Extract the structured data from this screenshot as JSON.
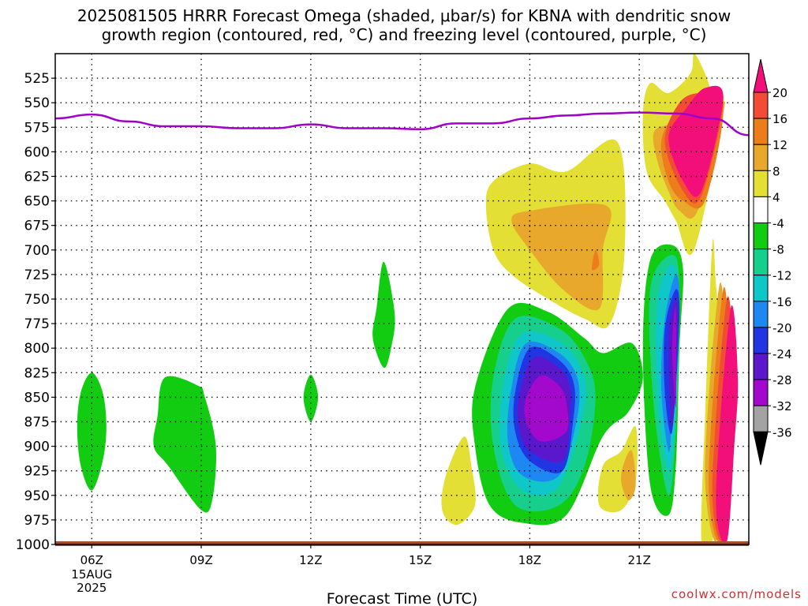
{
  "title_line1": "2025081505 HRRR Forecast Omega (shaded, μbar/s) for KBNA with dendritic snow",
  "title_line2": "growth region (contoured, red, °C) and freezing level (contoured, purple, °C)",
  "credit": "coolwx.com/models",
  "chart_data": {
    "type": "contour",
    "xlabel": "Forecast Time (UTC)",
    "ylabel": "",
    "x_range_hours": [
      5,
      24
    ],
    "x_ticks": [
      {
        "hour": 6,
        "label": "06Z",
        "sublabels": [
          "15AUG",
          "2025"
        ]
      },
      {
        "hour": 9,
        "label": "09Z"
      },
      {
        "hour": 12,
        "label": "12Z"
      },
      {
        "hour": 15,
        "label": "15Z"
      },
      {
        "hour": 18,
        "label": "18Z"
      },
      {
        "hour": 21,
        "label": "21Z"
      }
    ],
    "y_axis_pressure_mb": [
      525,
      550,
      575,
      600,
      625,
      650,
      675,
      700,
      725,
      750,
      775,
      800,
      825,
      850,
      875,
      900,
      925,
      950,
      975,
      1000
    ],
    "y_range_mb": [
      500,
      1000
    ],
    "grid": true,
    "colorbar": {
      "levels": [
        "20",
        "16",
        "12",
        "8",
        "4",
        "-4",
        "-8",
        "-12",
        "-16",
        "-20",
        "-24",
        "-28",
        "-32",
        "-36"
      ],
      "colors": [
        "#f20f7a",
        "#f24c36",
        "#ec7d1a",
        "#e7a82c",
        "#e3df35",
        "#ffffff",
        "#11cc11",
        "#17cf8c",
        "#0fc7c9",
        "#1e88f2",
        "#2235e2",
        "#5a17cc",
        "#a309cc",
        "#a3a3a3",
        "#000000"
      ]
    },
    "freezing_level_mb": {
      "color": "#a000c8",
      "x": [
        5,
        6,
        7,
        8,
        9,
        10,
        11,
        12,
        13,
        14,
        15,
        16,
        17,
        18,
        19,
        20,
        21,
        22,
        23,
        24
      ],
      "y": [
        566,
        562,
        569,
        574,
        574,
        576,
        576,
        572,
        576,
        576,
        577,
        571,
        571,
        566,
        563,
        561,
        560,
        561,
        566,
        583
      ]
    },
    "omega_regions": [
      {
        "level": -4,
        "hours": [
          6.0,
          6.3,
          6.4,
          6.3,
          6.0,
          5.7,
          5.6,
          5.7
        ],
        "mb": [
          825,
          845,
          880,
          915,
          945,
          920,
          880,
          845
        ]
      },
      {
        "level": -4,
        "hours": [
          8.0,
          8.9,
          9.1,
          9.4,
          9.3,
          9.0,
          8.1,
          7.7,
          7.8
        ],
        "mb": [
          830,
          838,
          850,
          900,
          955,
          965,
          920,
          900,
          870
        ]
      },
      {
        "level": -4,
        "hours": [
          12.0,
          12.2,
          12.0,
          11.8
        ],
        "mb": [
          827,
          850,
          875,
          850
        ]
      },
      {
        "level": -4,
        "hours": [
          14.0,
          14.3,
          14.2,
          14.0,
          13.7,
          13.8
        ],
        "mb": [
          712,
          765,
          800,
          820,
          790,
          760
        ]
      },
      {
        "level": 4,
        "hours": [
          16.2,
          16.4,
          16.5,
          16.0,
          15.6,
          15.7
        ],
        "mb": [
          890,
          920,
          960,
          980,
          965,
          930
        ]
      },
      {
        "level": 4,
        "hours": [
          18.0,
          19.0,
          20.4,
          20.6,
          20.2,
          19.5,
          18.5,
          17.5,
          17.0,
          16.8,
          17.0
        ],
        "mb": [
          612,
          620,
          590,
          700,
          775,
          770,
          750,
          725,
          700,
          655,
          630
        ]
      },
      {
        "level": 8,
        "hours": [
          18.0,
          20.1,
          20.0,
          19.9,
          18.9,
          18.0,
          17.5
        ],
        "mb": [
          660,
          655,
          700,
          760,
          740,
          700,
          670
        ]
      },
      {
        "level": 12,
        "hours": [
          19.8,
          19.9,
          19.7
        ],
        "mb": [
          700,
          715,
          720
        ]
      },
      {
        "level": 4,
        "hours": [
          20.5,
          20.9,
          20.9,
          20.5,
          19.9,
          20.0
        ],
        "mb": [
          905,
          880,
          935,
          965,
          960,
          920
        ]
      },
      {
        "level": 8,
        "hours": [
          20.8,
          20.9,
          20.7,
          20.5,
          20.6
        ],
        "mb": [
          905,
          940,
          955,
          935,
          915
        ]
      },
      {
        "level": -4,
        "hours": [
          17.4,
          18.5,
          19.5,
          20.0,
          20.8,
          21.1,
          20.7,
          20.0,
          19.0,
          17.8,
          16.9,
          16.5,
          16.5
        ],
        "mb": [
          760,
          763,
          790,
          805,
          795,
          830,
          865,
          890,
          970,
          978,
          960,
          900,
          840
        ]
      },
      {
        "level": -8,
        "hours": [
          17.6,
          18.8,
          19.5,
          19.8,
          19.5,
          18.8,
          17.6,
          17.0,
          17.0
        ],
        "mb": [
          770,
          780,
          810,
          850,
          920,
          960,
          960,
          900,
          830
        ]
      },
      {
        "level": -12,
        "hours": [
          17.8,
          18.8,
          19.4,
          19.5,
          18.8,
          17.8,
          17.2,
          17.3
        ],
        "mb": [
          785,
          793,
          820,
          860,
          940,
          945,
          900,
          830
        ]
      },
      {
        "level": -16,
        "hours": [
          17.9,
          18.8,
          19.3,
          19.3,
          18.8,
          17.8,
          17.4,
          17.5
        ],
        "mb": [
          795,
          805,
          830,
          870,
          930,
          930,
          895,
          840
        ]
      },
      {
        "level": -20,
        "hours": [
          18.0,
          18.8,
          19.2,
          19.2,
          18.9,
          18.0,
          17.6,
          17.6
        ],
        "mb": [
          800,
          812,
          835,
          870,
          925,
          915,
          885,
          845
        ]
      },
      {
        "level": -24,
        "hours": [
          18.1,
          18.8,
          19.1,
          19.1,
          18.9,
          18.0,
          17.7,
          17.7
        ],
        "mb": [
          810,
          820,
          840,
          870,
          915,
          905,
          880,
          850
        ]
      },
      {
        "level": -28,
        "hours": [
          18.3,
          18.8,
          19.0,
          19.0,
          18.3,
          17.9,
          17.9
        ],
        "mb": [
          828,
          838,
          855,
          885,
          895,
          875,
          850
        ]
      },
      {
        "level": -4,
        "hours": [
          21.9,
          22.2,
          22.1,
          22.0,
          21.8,
          21.3,
          21.1,
          21.3
        ],
        "mb": [
          695,
          720,
          800,
          920,
          970,
          940,
          800,
          710
        ]
      },
      {
        "level": -8,
        "hours": [
          21.9,
          22.1,
          22.0,
          21.8,
          21.4,
          21.3
        ],
        "mb": [
          705,
          740,
          880,
          950,
          860,
          740
        ]
      },
      {
        "level": -12,
        "hours": [
          21.9,
          22.1,
          22.0,
          21.8,
          21.5,
          21.5
        ],
        "mb": [
          715,
          750,
          870,
          925,
          850,
          750
        ]
      },
      {
        "level": -16,
        "hours": [
          22.0,
          22.1,
          21.9,
          21.8,
          21.6,
          21.7
        ],
        "mb": [
          725,
          760,
          870,
          905,
          840,
          770
        ]
      },
      {
        "level": -20,
        "hours": [
          22.0,
          22.1,
          21.9,
          21.7,
          21.7
        ],
        "mb": [
          740,
          770,
          885,
          845,
          780
        ]
      },
      {
        "level": -24,
        "hours": [
          22.0,
          22.05,
          21.9,
          21.8
        ],
        "mb": [
          750,
          780,
          880,
          790
        ]
      },
      {
        "level": -28,
        "hours": [
          22.0,
          22.0,
          21.9
        ],
        "mb": [
          760,
          860,
          800
        ]
      },
      {
        "level": 4,
        "hours": [
          21.8,
          22.4,
          22.5,
          22.8,
          23.0,
          23.3,
          22.5,
          22.0,
          21.7,
          21.2,
          21.1,
          21.3
        ],
        "mb": [
          540,
          520,
          500,
          520,
          540,
          555,
          700,
          670,
          650,
          620,
          560,
          530
        ]
      },
      {
        "level": 8,
        "hours": [
          21.9,
          22.5,
          23.2,
          23.3,
          22.6,
          22.1,
          21.8,
          21.5,
          21.4
        ],
        "mb": [
          570,
          550,
          550,
          560,
          660,
          660,
          640,
          610,
          580
        ]
      },
      {
        "level": 12,
        "hours": [
          22.0,
          22.6,
          23.3,
          22.8,
          22.2,
          21.8,
          21.6
        ],
        "mb": [
          560,
          545,
          555,
          650,
          650,
          630,
          590
        ]
      },
      {
        "level": 16,
        "hours": [
          22.1,
          22.7,
          23.3,
          22.7,
          22.2,
          21.7
        ],
        "mb": [
          550,
          540,
          548,
          645,
          640,
          590
        ]
      },
      {
        "level": 20,
        "hours": [
          22.3,
          22.8,
          23.3,
          22.7,
          22.2,
          21.8
        ],
        "mb": [
          555,
          535,
          545,
          640,
          630,
          585
        ]
      },
      {
        "level": 4,
        "hours": [
          23.0,
          23.1,
          23.3,
          23.2,
          23.0,
          22.7,
          22.8
        ],
        "mb": [
          695,
          735,
          830,
          900,
          997,
          997,
          870
        ]
      },
      {
        "level": 8,
        "hours": [
          23.2,
          23.4,
          23.3,
          23.1,
          22.8
        ],
        "mb": [
          735,
          830,
          900,
          997,
          920
        ]
      },
      {
        "level": 12,
        "hours": [
          23.3,
          23.5,
          23.4,
          23.2,
          22.9
        ],
        "mb": [
          740,
          830,
          900,
          997,
          930
        ]
      },
      {
        "level": 16,
        "hours": [
          23.4,
          23.6,
          23.5,
          23.3,
          23.0
        ],
        "mb": [
          750,
          830,
          900,
          997,
          940
        ]
      },
      {
        "level": 20,
        "hours": [
          23.5,
          23.7,
          23.6,
          23.4,
          23.1
        ],
        "mb": [
          760,
          830,
          900,
          997,
          950
        ]
      }
    ]
  }
}
